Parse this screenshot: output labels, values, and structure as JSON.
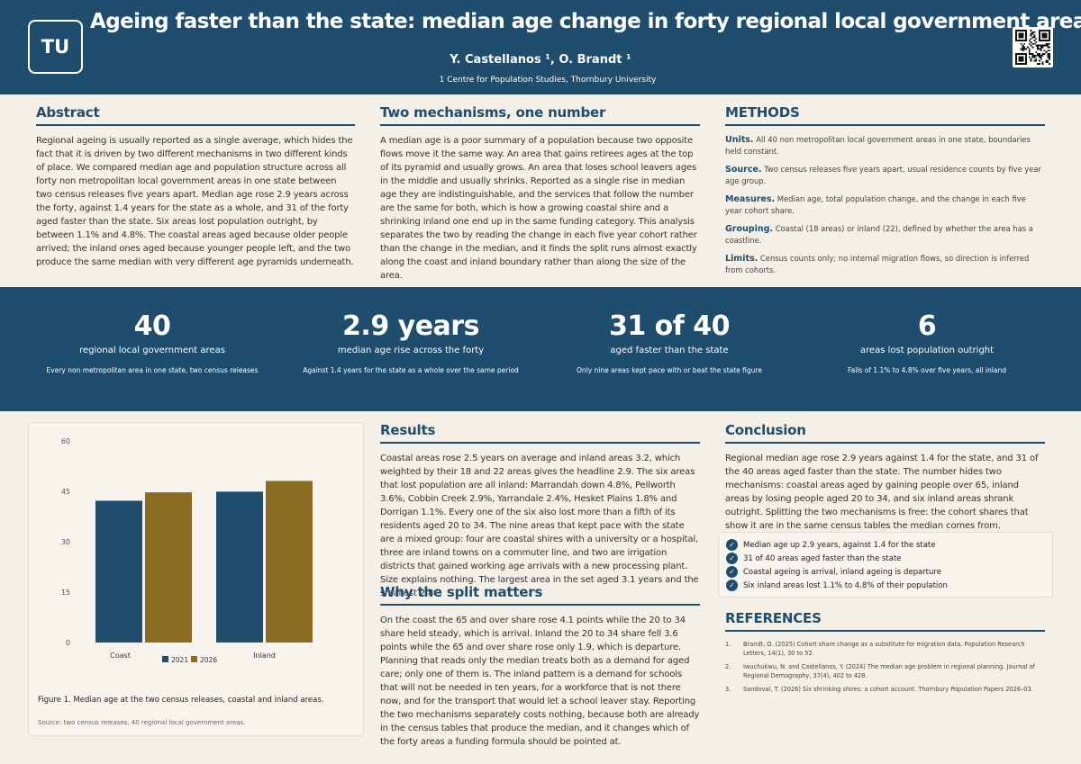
{
  "header": {
    "logo": "TU",
    "title": "Ageing faster than the state: median age change in forty regional local government areas",
    "authors": "Y. Castellanos ¹, O. Brandt ¹",
    "affiliation": "1 Centre for Population Studies, Thornbury University"
  },
  "abstract": {
    "heading": "Abstract",
    "text": "Regional ageing is usually reported as a single average, which hides the fact that it is driven by two different mechanisms in two different kinds of place. We compared median age and population structure across all forty non metropolitan local government areas in one state between two census releases five years apart. Median age rose 2.9 years across the forty, against 1.4 years for the state as a whole, and 31 of the forty aged faster than the state. Six areas lost population outright, by between 1.1% and 4.8%. The coastal areas aged because older people arrived; the inland ones aged because younger people left, and the two produce the same median with very different age pyramids underneath."
  },
  "mechanisms": {
    "heading": "Two mechanisms, one number",
    "text": "A median age is a poor summary of a population because two opposite flows move it the same way. An area that gains retirees ages at the top of its pyramid and usually grows. An area that loses school leavers ages in the middle and usually shrinks. Reported as a single rise in median age they are indistinguishable, and the services that follow the number are the same for both, which is how a growing coastal shire and a shrinking inland one end up in the same funding category. This analysis separates the two by reading the change in each five year cohort rather than the change in the median, and it finds the split runs almost exactly along the coast and inland boundary rather than along the size of the area."
  },
  "methods": {
    "heading": "METHODS",
    "items": [
      {
        "label": "Units.",
        "text": "All 40 non metropolitan local government areas in one state, boundaries held constant."
      },
      {
        "label": "Source.",
        "text": "Two census releases five years apart, usual residence counts by five year age group."
      },
      {
        "label": "Measures.",
        "text": "Median age, total population change, and the change in each five year cohort share."
      },
      {
        "label": "Grouping.",
        "text": "Coastal (18 areas) or inland (22), defined by whether the area has a coastline."
      },
      {
        "label": "Limits.",
        "text": "Census counts only; no internal migration flows, so direction is inferred from cohorts."
      }
    ]
  },
  "stats": [
    {
      "num": "40",
      "label": "regional local government areas",
      "note": "Every non metropolitan area in one state, two census releases"
    },
    {
      "num": "2.9 years",
      "label": "median age rise across the forty",
      "note": "Against 1.4 years for the state as a whole over the same period"
    },
    {
      "num": "31 of 40",
      "label": "aged faster than the state",
      "note": "Only nine areas kept pace with or beat the state figure"
    },
    {
      "num": "6",
      "label": "areas lost population outright",
      "note": "Falls of 1.1% to 4.8% over five years, all inland"
    }
  ],
  "figure": {
    "caption": "Figure 1. Median age at the two census releases, coastal and inland areas.",
    "source": "Source: two census releases, 40 regional local government areas."
  },
  "chart_data": {
    "type": "bar",
    "categories": [
      "Coast",
      "Inland"
    ],
    "series": [
      {
        "name": "2021",
        "values": [
          42.2,
          44.9
        ],
        "color": "#1e4d6e"
      },
      {
        "name": "2026",
        "values": [
          44.7,
          48.1
        ],
        "color": "#8a6d22"
      }
    ],
    "ylim": [
      0,
      60
    ],
    "yticks": [
      0,
      15,
      30,
      45,
      60
    ],
    "grid": false,
    "legend": "bottom"
  },
  "results": {
    "heading": "Results",
    "text": "Coastal areas rose 2.5 years on average and inland areas 3.2, which weighted by their 18 and 22 areas gives the headline 2.9. The six areas that lost population are all inland: Marrandah down 4.8%, Pellworth 3.6%, Cobbin Creek 2.9%, Yarrandale 2.4%, Hesket Plains 1.8% and Dorrigan 1.1%. Every one of the six also lost more than a fifth of its residents aged 20 to 34. The nine areas that kept pace with the state are a mixed group: four are coastal shires with a university or a hospital, three are inland towns on a commuter line, and two are irrigation districts that gained working age arrivals with a new processing plant. Size explains nothing. The largest area in the set aged 3.1 years and the smallest 2.8."
  },
  "why": {
    "heading": "Why the split matters",
    "text": "On the coast the 65 and over share rose 4.1 points while the 20 to 34 share held steady, which is arrival. Inland the 20 to 34 share fell 3.6 points while the 65 and over share rose only 1.9, which is departure. Planning that reads only the median treats both as a demand for aged care; only one of them is. The inland pattern is a demand for schools that will not be needed in ten years, for a workforce that is not there now, and for the transport that would let a school leaver stay. Reporting the two mechanisms separately costs nothing, because both are already in the census tables that produce the median, and it changes which of the forty areas a funding formula should be pointed at."
  },
  "conclusion": {
    "heading": "Conclusion",
    "text": "Regional median age rose 2.9 years against 1.4 for the state, and 31 of the 40 areas aged faster than the state. The number hides two mechanisms: coastal areas aged by gaining people over 65, inland areas by losing people aged 20 to 34, and six inland areas shrank outright. Splitting the two mechanisms is free: the cohort shares that show it are in the same census tables the median comes from.",
    "checks": [
      "Median age up 2.9 years, against 1.4 for the state",
      "31 of 40 areas aged faster than the state",
      "Coastal ageing is arrival, inland ageing is departure",
      "Six inland areas lost 1.1% to 4.8% of their population"
    ]
  },
  "references": {
    "heading": "REFERENCES",
    "items": [
      {
        "n": "1.",
        "text": "Brandt, O. (2025) Cohort share change as a substitute for migration data. Population Research Letters, 14(1), 30 to 52."
      },
      {
        "n": "2.",
        "text": "Iwuchukwu, N. and Castellanos, Y. (2024) The median age problem in regional planning. Journal of Regional Demography, 37(4), 402 to 428."
      },
      {
        "n": "3.",
        "text": "Sandoval, T. (2026) Six shrinking shires: a cohort account. Thornbury Population Papers 2026–03."
      }
    ]
  }
}
